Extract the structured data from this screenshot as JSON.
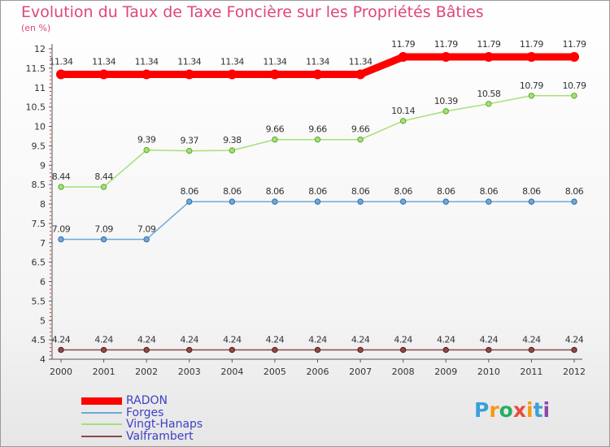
{
  "title": "Evolution du Taux de Taxe Foncière sur les Propriétés Bâties",
  "subtitle": "(en %)",
  "logo": {
    "text": "Proxiti",
    "letters": [
      "P",
      "r",
      "o",
      "x",
      "i",
      "t",
      "i"
    ],
    "colors": [
      "#3aa0d8",
      "#f39c12",
      "#27ae60",
      "#e74c3c",
      "#f39c12",
      "#3aa0d8",
      "#8e44ad"
    ]
  },
  "chart_data": {
    "type": "line",
    "x": [
      "2000",
      "2001",
      "2002",
      "2003",
      "2004",
      "2005",
      "2006",
      "2007",
      "2008",
      "2009",
      "2010",
      "2011",
      "2012"
    ],
    "ylim": [
      4,
      12
    ],
    "yticks": [
      4,
      4.5,
      5,
      5.5,
      6,
      6.5,
      7,
      7.5,
      8,
      8.5,
      9,
      9.5,
      10,
      10.5,
      11,
      11.5,
      12
    ],
    "grid": false,
    "legend": "bottom-left",
    "series": [
      {
        "name": "RADON",
        "color": "#ff0000",
        "width": 9,
        "values": [
          11.34,
          11.34,
          11.34,
          11.34,
          11.34,
          11.34,
          11.34,
          11.34,
          11.79,
          11.79,
          11.79,
          11.79,
          11.79
        ],
        "labels": [
          "11.34",
          "11.34",
          "11.34",
          "11.34",
          "11.34",
          "11.34",
          "11.34",
          "11.34",
          "11.79",
          "11.79",
          "11.79",
          "11.79",
          "11.79"
        ]
      },
      {
        "name": "Forges",
        "color": "#6fa8dc",
        "width": 1.5,
        "values": [
          7.09,
          7.09,
          7.09,
          8.06,
          8.06,
          8.06,
          8.06,
          8.06,
          8.06,
          8.06,
          8.06,
          8.06,
          8.06
        ],
        "labels": [
          "7.09",
          "7.09",
          "7.09",
          "8.06",
          "8.06",
          "8.06",
          "8.06",
          "8.06",
          "8.06",
          "8.06",
          "8.06",
          "8.06",
          "8.06"
        ]
      },
      {
        "name": "Vingt-Hanaps",
        "color": "#a6e07a",
        "width": 1.5,
        "values": [
          8.44,
          8.44,
          9.39,
          9.37,
          9.38,
          9.66,
          9.66,
          9.66,
          10.14,
          10.39,
          10.58,
          10.79,
          10.79
        ],
        "labels": [
          "8.44",
          "8.44",
          "9.39",
          "9.37",
          "9.38",
          "9.66",
          "9.66",
          "9.66",
          "10.14",
          "10.39",
          "10.58",
          "10.79",
          "10.79"
        ]
      },
      {
        "name": "Valframbert",
        "color": "#8b4a4a",
        "width": 1.5,
        "values": [
          4.24,
          4.24,
          4.24,
          4.24,
          4.24,
          4.24,
          4.24,
          4.24,
          4.24,
          4.24,
          4.24,
          4.24,
          4.24
        ],
        "labels": [
          "4.24",
          "4.24",
          "4.24",
          "4.24",
          "4.24",
          "4.24",
          "4.24",
          "4.24",
          "4.24",
          "4.24",
          "4.24",
          "4.24",
          "4.24"
        ]
      }
    ]
  }
}
